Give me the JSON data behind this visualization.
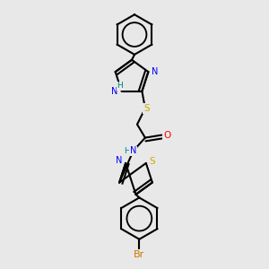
{
  "background_color": "#e8e8e8",
  "atom_colors": {
    "N": "#0000ff",
    "O": "#ff0000",
    "S": "#ccaa00",
    "Br": "#cc7700",
    "C": "#000000",
    "H": "#008080"
  },
  "bond_color": "#000000",
  "bond_width": 1.5,
  "figsize": [
    3.0,
    3.0
  ],
  "dpi": 100
}
